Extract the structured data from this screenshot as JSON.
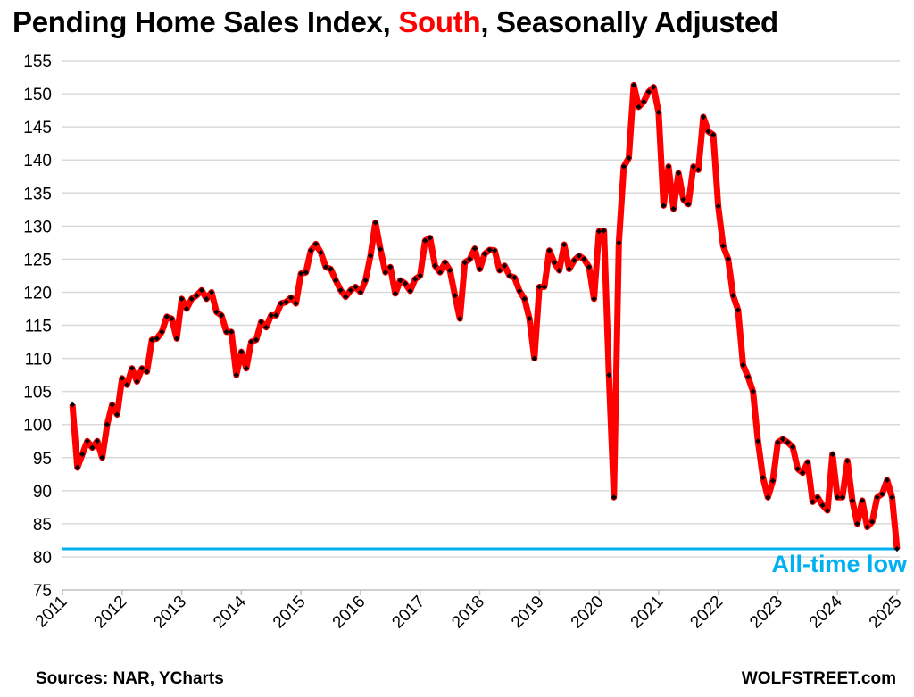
{
  "title": {
    "prefix": "Pending Home Sales Index, ",
    "highlight": "South",
    "suffix": ", Seasonally Adjusted"
  },
  "footer": {
    "sources": "Sources: NAR, YCharts",
    "brand": "WOLFSTREET.com"
  },
  "colors": {
    "line": "#ff0000",
    "marker": "#000000",
    "low_line": "#00b0f0",
    "grid": "#d9d9d9",
    "highlight": "#ff0000"
  },
  "chart_data": {
    "type": "line",
    "title": "Pending Home Sales Index, South, Seasonally Adjusted",
    "xlabel": "",
    "ylabel": "",
    "ylim": [
      75,
      155
    ],
    "yticks": [
      75,
      80,
      85,
      90,
      95,
      100,
      105,
      110,
      115,
      120,
      125,
      130,
      135,
      140,
      145,
      150,
      155
    ],
    "xlim": [
      2011,
      2025
    ],
    "xticks": [
      "2011",
      "2012",
      "2013",
      "2014",
      "2015",
      "2016",
      "2017",
      "2018",
      "2019",
      "2020",
      "2021",
      "2022",
      "2023",
      "2024",
      "2025"
    ],
    "grid": true,
    "start": "2011-03",
    "frequency": "monthly",
    "series": [
      {
        "name": "Pending Home Sales Index, South",
        "values": [
          103,
          93.5,
          95.5,
          97.5,
          96.5,
          97.5,
          95,
          100,
          103,
          101.5,
          107,
          106,
          108.5,
          106.5,
          108.5,
          108,
          112.8,
          113,
          114,
          116.3,
          116,
          113,
          119,
          117.5,
          119,
          119.5,
          120.3,
          119,
          120,
          117,
          116.5,
          114,
          114,
          107.5,
          111,
          108.5,
          112.5,
          112.8,
          115.5,
          114.7,
          116.5,
          116.5,
          118.3,
          118.5,
          119.2,
          118.3,
          122.8,
          123,
          126.3,
          127.3,
          126,
          123.8,
          123.5,
          121.8,
          120.3,
          119.3,
          120.3,
          120.8,
          120,
          121.8,
          125.5,
          130.5,
          126.5,
          123,
          123.8,
          119.8,
          121.8,
          121.3,
          120.2,
          122,
          122.5,
          127.8,
          128.2,
          124,
          123,
          124.5,
          123.3,
          119.5,
          116,
          124.5,
          125,
          126.6,
          123.5,
          125.8,
          126.4,
          126.3,
          123.3,
          124,
          122.5,
          122.2,
          120.2,
          119,
          116,
          110,
          120.8,
          120.8,
          126.3,
          124.5,
          123.3,
          127.2,
          123.5,
          124.8,
          125.5,
          125,
          123.8,
          119,
          129.2,
          129.3,
          107.5,
          89,
          127.5,
          139,
          140.3,
          151.3,
          148,
          148.8,
          150.3,
          151,
          147.2,
          133.1,
          139,
          132.6,
          138,
          134,
          133.3,
          139,
          138.5,
          146.5,
          144.3,
          143.8,
          133,
          127,
          125,
          119.5,
          117.3,
          109,
          107.2,
          105,
          97.5,
          92,
          89,
          91.5,
          97.3,
          97.8,
          97.3,
          96.6,
          93.3,
          92.7,
          94.3,
          88.3,
          89,
          87.8,
          87,
          95.5,
          89,
          89,
          94.5,
          88.5,
          85,
          88.5,
          84.5,
          85.3,
          89,
          89.5,
          91.6,
          89,
          81.2
        ]
      }
    ],
    "reference_line": {
      "value": 81.2,
      "label": "All-time low"
    }
  }
}
